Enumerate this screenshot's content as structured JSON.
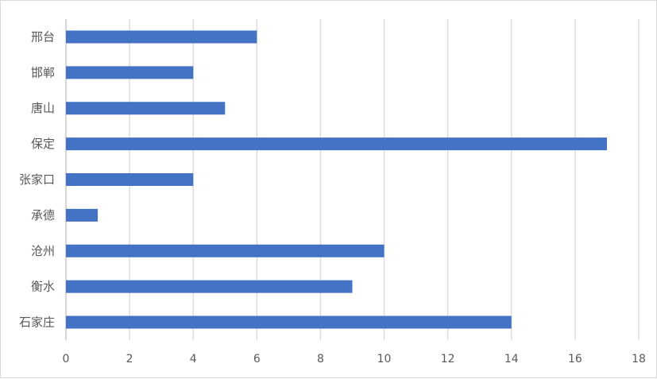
{
  "chart_data": {
    "type": "bar",
    "orientation": "horizontal",
    "categories": [
      "邢台",
      "邯郸",
      "唐山",
      "保定",
      "张家口",
      "承德",
      "沧州",
      "衡水",
      "石家庄"
    ],
    "values": [
      6,
      4,
      5,
      17,
      4,
      1,
      10,
      9,
      14
    ],
    "title": "",
    "xlabel": "",
    "ylabel": "",
    "xlim": [
      0,
      18
    ],
    "xticks": [
      0,
      2,
      4,
      6,
      8,
      10,
      12,
      14,
      16,
      18
    ],
    "grid": true,
    "legend": "none",
    "colors": {
      "bar": "#4472C4",
      "grid": "#d9d9d9",
      "text": "#595959"
    }
  }
}
